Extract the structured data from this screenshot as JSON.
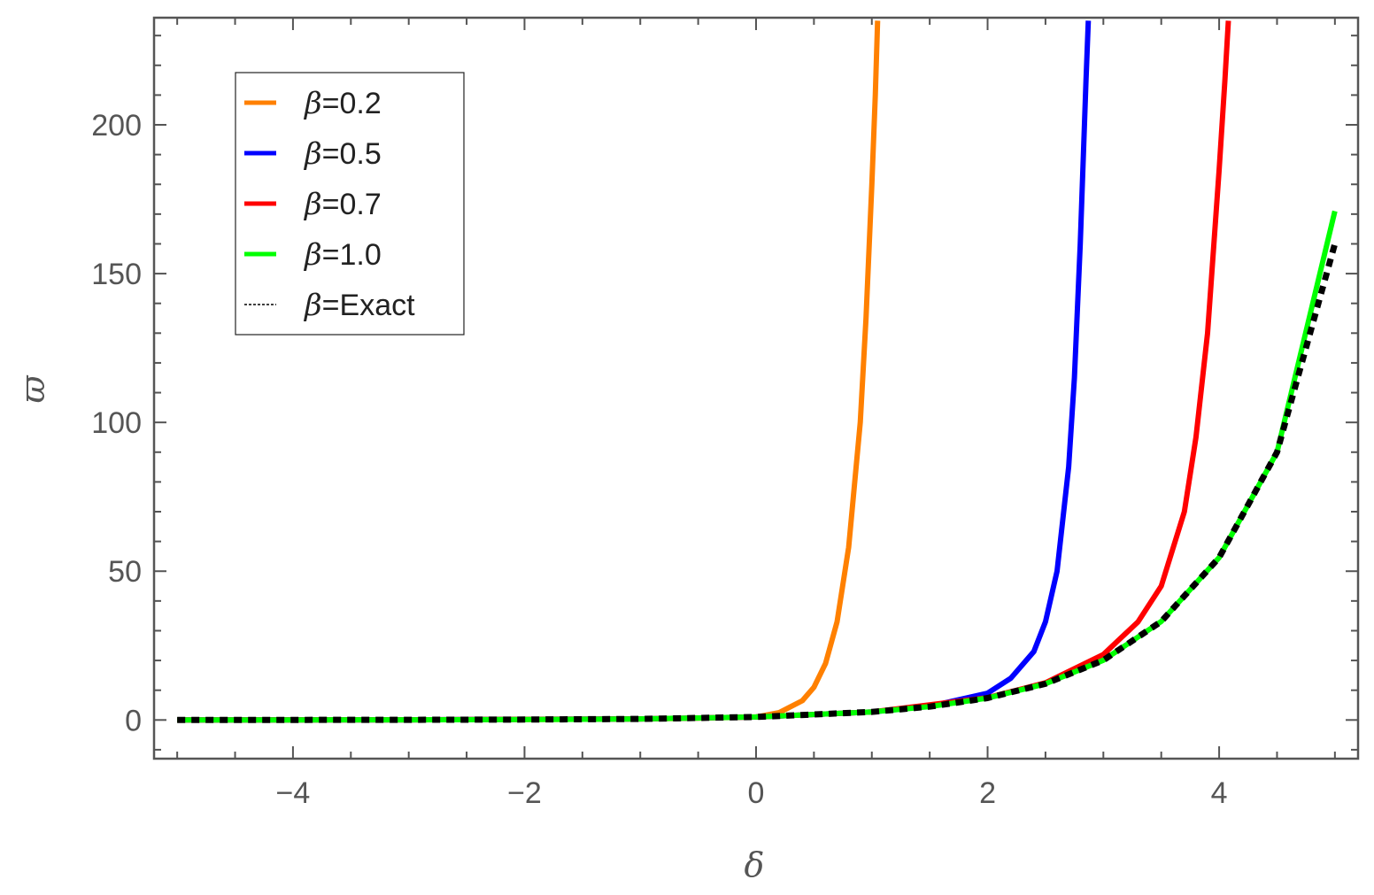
{
  "chart_data": {
    "type": "line",
    "xlabel": "δ",
    "ylabel": "ϖ",
    "xlim": [
      -5.2,
      5.2
    ],
    "ylim": [
      -13,
      236
    ],
    "x_ticks": [
      -4,
      -2,
      0,
      2,
      4
    ],
    "x_tick_labels": [
      "−4",
      "−2",
      "0",
      "2",
      "4"
    ],
    "y_ticks": [
      0,
      50,
      100,
      150,
      200
    ],
    "y_tick_labels": [
      "0",
      "50",
      "100",
      "150",
      "200"
    ],
    "legend": {
      "placement": "top-left"
    },
    "series": [
      {
        "name": "β=0.2",
        "greek": "β",
        "rest": "=0.2",
        "color": "#ff8000",
        "dashed": false,
        "x": [
          -5,
          -4,
          -3,
          -2,
          -1,
          -0.5,
          0,
          0.2,
          0.4,
          0.5,
          0.6,
          0.7,
          0.8,
          0.9,
          0.95,
          1.0,
          1.03,
          1.05
        ],
        "y": [
          0.01,
          0.02,
          0.05,
          0.14,
          0.37,
          0.61,
          1.0,
          2.5,
          6.5,
          11,
          19,
          33,
          58,
          100,
          135,
          180,
          210,
          235
        ]
      },
      {
        "name": "β=0.5",
        "greek": "β",
        "rest": "=0.5",
        "color": "#0000ff",
        "dashed": false,
        "x": [
          -5,
          -3,
          -1,
          0,
          1,
          1.5,
          2.0,
          2.2,
          2.4,
          2.5,
          2.6,
          2.7,
          2.75,
          2.8,
          2.85,
          2.87
        ],
        "y": [
          0.01,
          0.05,
          0.37,
          1.0,
          2.7,
          4.6,
          9,
          14,
          23,
          33,
          50,
          85,
          115,
          160,
          215,
          235
        ]
      },
      {
        "name": "β=0.7",
        "greek": "β",
        "rest": "=0.7",
        "color": "#ff0000",
        "dashed": false,
        "x": [
          -5,
          -3,
          -1,
          0,
          1,
          2,
          2.5,
          3.0,
          3.3,
          3.5,
          3.7,
          3.8,
          3.9,
          4.0,
          4.05,
          4.08
        ],
        "y": [
          0.01,
          0.05,
          0.37,
          1.0,
          2.7,
          7.5,
          12.5,
          22,
          33,
          45,
          70,
          95,
          130,
          185,
          215,
          235
        ]
      },
      {
        "name": "β=1.0",
        "greek": "β",
        "rest": "=1.0",
        "color": "#00ff00",
        "dashed": false,
        "x": [
          -5,
          -4,
          -3,
          -2,
          -1,
          0,
          1,
          1.5,
          2,
          2.5,
          3,
          3.5,
          4,
          4.5,
          5
        ],
        "y": [
          0.007,
          0.018,
          0.05,
          0.14,
          0.37,
          1.0,
          2.72,
          4.48,
          7.39,
          12.18,
          20.09,
          33.12,
          54.6,
          90.02,
          171
        ]
      },
      {
        "name": "β=Exact",
        "greek": "β",
        "rest": "=Exact",
        "color": "#000000",
        "dashed": true,
        "x": [
          -5,
          -4,
          -3,
          -2,
          -1,
          0,
          1,
          1.5,
          2,
          2.5,
          3,
          3.5,
          4,
          4.5,
          5
        ],
        "y": [
          0.007,
          0.018,
          0.05,
          0.14,
          0.37,
          1.0,
          2.72,
          4.48,
          7.39,
          12.18,
          20.09,
          33.12,
          54.6,
          90.02,
          160
        ]
      }
    ]
  }
}
